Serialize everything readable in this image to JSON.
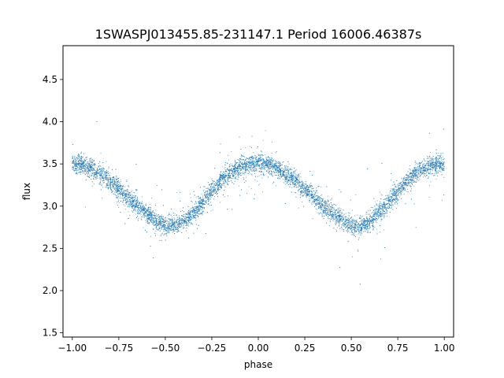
{
  "chart_data": {
    "type": "scatter",
    "title": "1SWASPJ013455.85-231147.1 Period 16006.46387s",
    "xlabel": "phase",
    "ylabel": "flux",
    "xlim": [
      -1.05,
      1.05
    ],
    "ylim": [
      1.45,
      4.9
    ],
    "xticks": [
      -1.0,
      -0.75,
      -0.5,
      -0.25,
      0.0,
      0.25,
      0.5,
      0.75,
      1.0
    ],
    "xtick_labels": [
      "−1.00",
      "−0.75",
      "−0.50",
      "−0.25",
      "0.00",
      "0.25",
      "0.50",
      "0.75",
      "1.00"
    ],
    "yticks": [
      1.5,
      2.0,
      2.5,
      3.0,
      3.5,
      4.0,
      4.5
    ],
    "ytick_labels": [
      "1.5",
      "2.0",
      "2.5",
      "3.0",
      "3.5",
      "4.0",
      "4.5"
    ],
    "grid": false,
    "marker_color": "#1f77b4",
    "series": [
      {
        "x": [
          -1.0,
          -0.95,
          -0.9,
          -0.85,
          -0.8,
          -0.75,
          -0.7,
          -0.65,
          -0.6,
          -0.55,
          -0.5,
          -0.45,
          -0.4,
          -0.35,
          -0.3,
          -0.25,
          -0.2,
          -0.15,
          -0.1,
          -0.05,
          0.0,
          0.05,
          0.1,
          0.15,
          0.2,
          0.25,
          0.3,
          0.35,
          0.4,
          0.45,
          0.5,
          0.55,
          0.6,
          0.65,
          0.7,
          0.75,
          0.8,
          0.85,
          0.9,
          0.95,
          1.0
        ],
        "y": [
          3.5,
          3.5,
          3.45,
          3.38,
          3.3,
          3.2,
          3.1,
          3.0,
          2.92,
          2.83,
          2.77,
          2.77,
          2.82,
          2.92,
          3.05,
          3.18,
          3.3,
          3.4,
          3.46,
          3.5,
          3.5,
          3.5,
          3.45,
          3.38,
          3.3,
          3.2,
          3.1,
          3.0,
          2.92,
          2.83,
          2.77,
          2.77,
          2.82,
          2.92,
          3.05,
          3.18,
          3.3,
          3.4,
          3.46,
          3.5,
          3.5
        ]
      }
    ]
  }
}
